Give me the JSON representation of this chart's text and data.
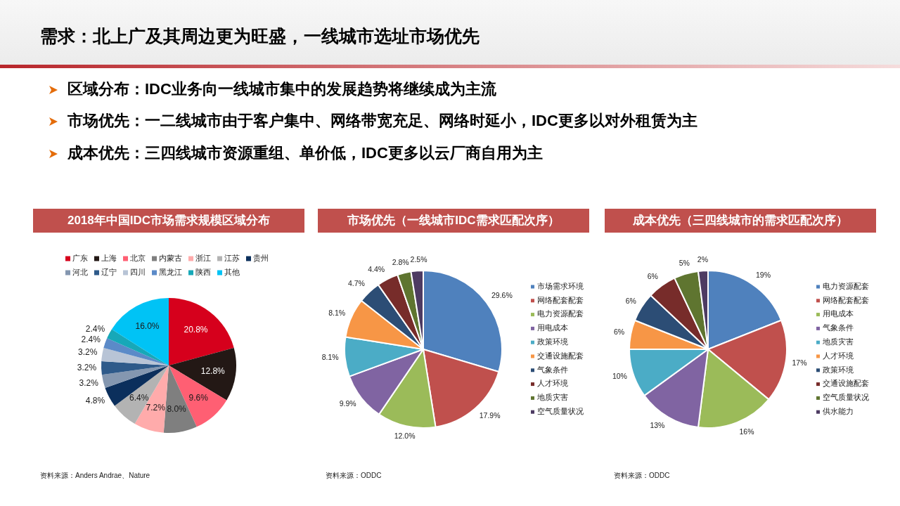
{
  "chart_data": [
    {
      "type": "other",
      "title": "需求：北上广及其周边更为旺盛，一线城市选址市场优先",
      "annotations": [
        "区域分布：IDC业务向一线城市集中的发展趋势将继续成为主流",
        "市场优先：一二线城市由于客户集中、网络带宽充足、网络时延小，IDC更多以对外租赁为主",
        "成本优先：三四线城市资源重组、单价低，IDC更多以云厂商自用为主"
      ]
    },
    {
      "type": "pie",
      "title": "2018年中国IDC市场需求规模区域分布",
      "categories": [
        "广东",
        "上海",
        "北京",
        "内蒙古",
        "浙江",
        "江苏",
        "贵州",
        "河北",
        "辽宁",
        "四川",
        "黑龙江",
        "陕西",
        "其他"
      ],
      "values": [
        20.8,
        12.8,
        9.6,
        8.0,
        7.2,
        6.4,
        4.8,
        3.2,
        3.2,
        3.2,
        2.4,
        2.4,
        16.0
      ],
      "colors": [
        "#d6001c",
        "#231815",
        "#ff5f73",
        "#7f7f7f",
        "#ffabab",
        "#b3b3b3",
        "#0b2f5c",
        "#8497b0",
        "#2e5a8a",
        "#b8c4d6",
        "#5b8ac8",
        "#17a8b8",
        "#00c3f5"
      ],
      "value_labels": [
        "20.8%",
        "12.8%",
        "9.6%",
        "8.0%",
        "7.2%",
        "6.4%",
        "4.8%",
        "3.2%",
        "3.2%",
        "3.2%",
        "2.4%",
        "2.4%",
        "16.0%"
      ],
      "legend": "top",
      "annotations": [
        "资料来源：Anders Andrae、Nature"
      ]
    },
    {
      "type": "pie",
      "title": "市场优先（一线城市IDC需求匹配次序）",
      "categories": [
        "市场需求环境",
        "网络配套配套",
        "电力资源配套",
        "用电成本",
        "政策环境",
        "交通设施配套",
        "气象条件",
        "人才环境",
        "地质灾害",
        "空气质量状况"
      ],
      "values": [
        29.6,
        17.9,
        12.0,
        9.9,
        8.1,
        8.1,
        4.7,
        4.4,
        2.8,
        2.5
      ],
      "colors": [
        "#4f81bd",
        "#c0504d",
        "#9bbb59",
        "#8064a2",
        "#4bacc6",
        "#f79646",
        "#2c4d75",
        "#772c2a",
        "#5f7530",
        "#4d3b62"
      ],
      "value_labels": [
        "29.6%",
        "17.9%",
        "12.0%",
        "9.9%",
        "8.1%",
        "8.1%",
        "4.7%",
        "4.4%",
        "2.8%",
        "2.5%"
      ],
      "legend": "right",
      "annotations": [
        "资料来源：ODDC"
      ]
    },
    {
      "type": "pie",
      "title": "成本优先（三四线城市的需求匹配次序）",
      "categories": [
        "电力资源配套",
        "网络配套配套",
        "用电成本",
        "气象条件",
        "地质灾害",
        "人才环境",
        "政策环境",
        "交通设施配套",
        "空气质量状况",
        "供水能力"
      ],
      "values": [
        19,
        17,
        16,
        13,
        10,
        6,
        6,
        6,
        5,
        2
      ],
      "colors": [
        "#4f81bd",
        "#c0504d",
        "#9bbb59",
        "#8064a2",
        "#4bacc6",
        "#f79646",
        "#2c4d75",
        "#772c2a",
        "#5f7530",
        "#4d3b62"
      ],
      "value_labels": [
        "19%",
        "17%",
        "16%",
        "13%",
        "10%",
        "6%",
        "6%",
        "6%",
        "5%",
        "2%"
      ],
      "legend": "right",
      "annotations": [
        "资料来源：ODDC"
      ]
    }
  ]
}
